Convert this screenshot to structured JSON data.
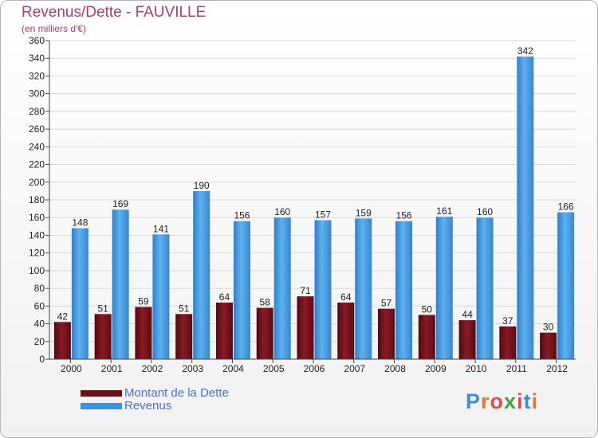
{
  "header": {
    "title": "Revenus/Dette - FAUVILLE",
    "subtitle": "(en milliers d'€)"
  },
  "legend": {
    "items": [
      "Montant de la Dette",
      "Revenus"
    ]
  },
  "logo": {
    "text": "Proxiti",
    "letters": [
      "P",
      "r",
      "o",
      "x",
      "i",
      "t",
      "i"
    ],
    "colors": [
      "#3f8fd8",
      "#e9752f",
      "#e04a4a",
      "#3fa63f",
      "#e04a4a",
      "#3f8fd8",
      "#e9752f"
    ]
  },
  "colors": {
    "dette": "#6b0f16",
    "revenus": "#3f93dd"
  },
  "chart_data": {
    "type": "bar",
    "title": "Revenus/Dette - FAUVILLE",
    "subtitle": "(en milliers d'€)",
    "categories": [
      "2000",
      "2001",
      "2002",
      "2003",
      "2004",
      "2005",
      "2006",
      "2007",
      "2008",
      "2009",
      "2010",
      "2011",
      "2012"
    ],
    "series": [
      {
        "name": "Montant de la Dette",
        "values": [
          42,
          51,
          59,
          51,
          64,
          58,
          71,
          64,
          57,
          50,
          44,
          37,
          30
        ]
      },
      {
        "name": "Revenus",
        "values": [
          148,
          169,
          141,
          190,
          156,
          160,
          157,
          159,
          156,
          161,
          160,
          342,
          166
        ]
      }
    ],
    "ylim": [
      0,
      360
    ],
    "yticks": [
      0,
      20,
      40,
      60,
      80,
      100,
      120,
      140,
      160,
      180,
      200,
      220,
      240,
      260,
      280,
      300,
      320,
      340,
      360
    ],
    "grid": true,
    "legend_position": "bottom-left"
  }
}
